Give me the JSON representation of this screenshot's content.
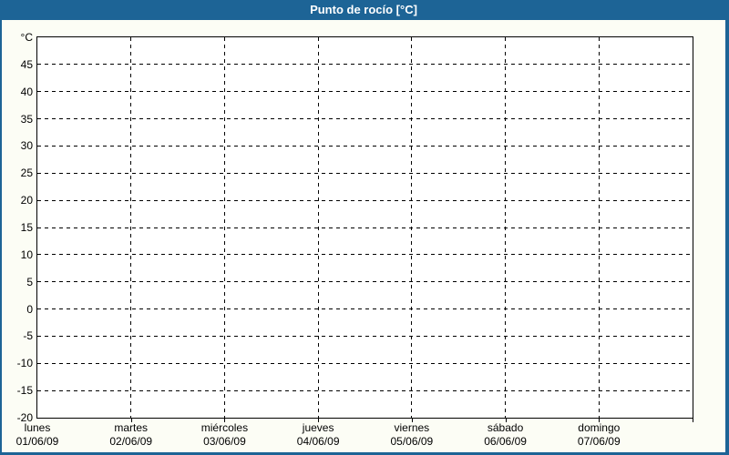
{
  "title_bar": {
    "title": "Punto de rocío [°C]"
  },
  "chart_data": {
    "type": "line",
    "title": "Punto de rocío [°C]",
    "unit_label": "°C",
    "y_axis": {
      "min": -20,
      "max": 50,
      "step": 5,
      "tick_labels": [
        "45",
        "40",
        "35",
        "30",
        "25",
        "20",
        "15",
        "10",
        "5",
        "0",
        "-5",
        "-10",
        "-15",
        "-20"
      ],
      "top_label": "°C"
    },
    "x_axis": {
      "days": [
        {
          "name": "lunes",
          "date": "01/06/09"
        },
        {
          "name": "martes",
          "date": "02/06/09"
        },
        {
          "name": "miércoles",
          "date": "03/06/09"
        },
        {
          "name": "jueves",
          "date": "04/06/09"
        },
        {
          "name": "viernes",
          "date": "05/06/09"
        },
        {
          "name": "sábado",
          "date": "06/06/09"
        },
        {
          "name": "domingo",
          "date": "07/06/09"
        }
      ]
    },
    "series": [],
    "grid": "dashed",
    "legend": "none"
  },
  "colors": {
    "titlebar_bg": "#1d6496",
    "titlebar_text": "#ffffff",
    "frame_border": "#1d6496",
    "page_bg": "#fcfdf5",
    "plot_bg": "#ffffff",
    "axis": "#000000",
    "grid": "#000000",
    "label_text": "#000000"
  }
}
